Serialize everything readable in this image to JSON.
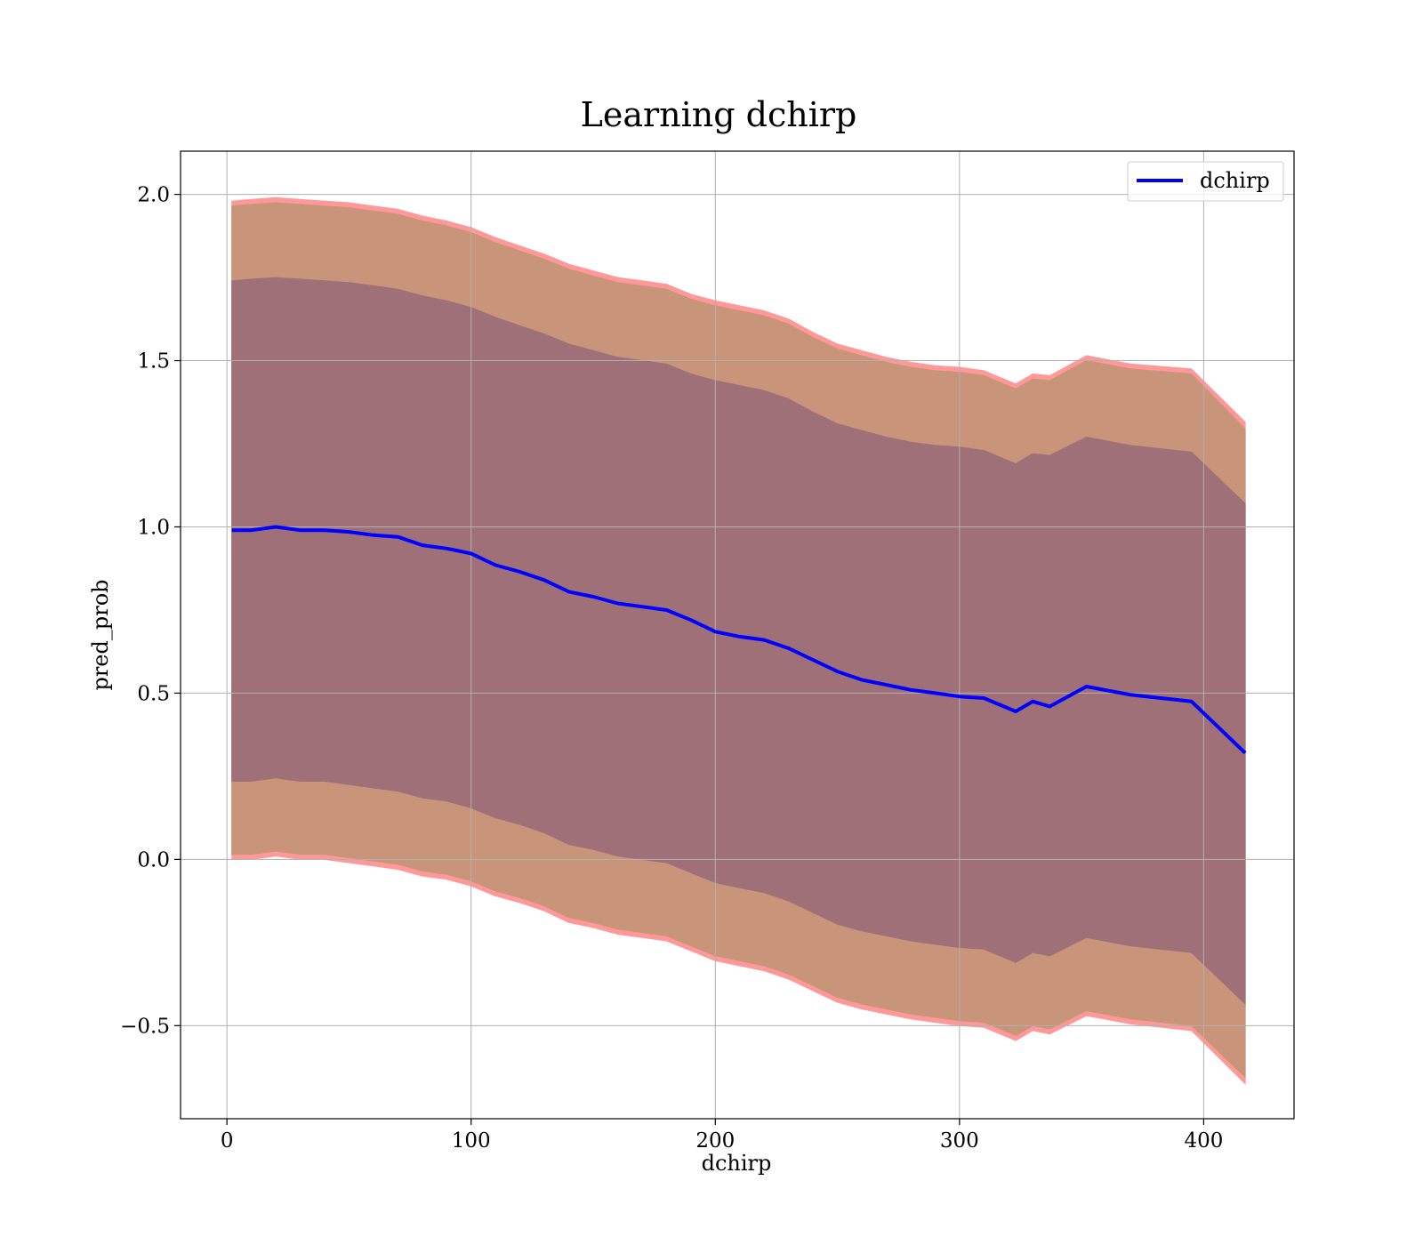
{
  "chart_data": {
    "type": "line",
    "title": "Learning dchirp",
    "xlabel": "dchirp",
    "ylabel": "pred_prob",
    "xlim": [
      -19,
      437
    ],
    "ylim": [
      -0.78,
      2.13
    ],
    "xticks": [
      0,
      100,
      200,
      300,
      400
    ],
    "yticks": [
      -0.5,
      0.0,
      0.5,
      1.0,
      1.5,
      2.0
    ],
    "xtick_labels": [
      "0",
      "100",
      "200",
      "300",
      "400"
    ],
    "ytick_labels": [
      "−0.5",
      "0.0",
      "0.5",
      "1.0",
      "1.5",
      "2.0"
    ],
    "grid": true,
    "legend": {
      "position": "top-right",
      "entries": [
        "dchirp"
      ]
    },
    "colors": {
      "line": "#0000ff",
      "band_outer": "#ff9999",
      "band_middle": "#c8957a",
      "band_inner": "#a07078"
    },
    "x": [
      2,
      10,
      20,
      30,
      40,
      50,
      60,
      70,
      80,
      90,
      100,
      110,
      120,
      130,
      140,
      150,
      160,
      170,
      180,
      190,
      200,
      210,
      220,
      230,
      240,
      250,
      260,
      270,
      280,
      290,
      300,
      310,
      323,
      330,
      337,
      352,
      370,
      395,
      417
    ],
    "series": [
      {
        "name": "dchirp",
        "values": [
          0.99,
          0.99,
          1.0,
          0.99,
          0.99,
          0.985,
          0.975,
          0.97,
          0.945,
          0.935,
          0.92,
          0.885,
          0.865,
          0.84,
          0.805,
          0.79,
          0.77,
          0.76,
          0.75,
          0.72,
          0.685,
          0.67,
          0.66,
          0.635,
          0.6,
          0.565,
          0.54,
          0.525,
          0.51,
          0.5,
          0.49,
          0.485,
          0.445,
          0.475,
          0.46,
          0.52,
          0.495,
          0.475,
          0.32
        ]
      }
    ],
    "bands": [
      {
        "level": "outer",
        "upper": [
          1.98,
          1.985,
          1.99,
          1.985,
          1.98,
          1.975,
          1.965,
          1.955,
          1.935,
          1.92,
          1.9,
          1.87,
          1.845,
          1.82,
          1.79,
          1.77,
          1.75,
          1.74,
          1.73,
          1.7,
          1.68,
          1.665,
          1.65,
          1.625,
          1.585,
          1.55,
          1.53,
          1.51,
          1.495,
          1.485,
          1.48,
          1.47,
          1.43,
          1.46,
          1.455,
          1.515,
          1.49,
          1.475,
          1.315
        ],
        "lower": [
          0.0,
          0.0,
          0.01,
          0.0,
          0.0,
          -0.01,
          -0.02,
          -0.03,
          -0.05,
          -0.06,
          -0.08,
          -0.11,
          -0.13,
          -0.155,
          -0.19,
          -0.205,
          -0.225,
          -0.235,
          -0.245,
          -0.275,
          -0.305,
          -0.32,
          -0.335,
          -0.36,
          -0.395,
          -0.43,
          -0.45,
          -0.465,
          -0.48,
          -0.49,
          -0.5,
          -0.505,
          -0.545,
          -0.515,
          -0.525,
          -0.47,
          -0.495,
          -0.515,
          -0.675
        ]
      },
      {
        "level": "middle",
        "upper": [
          1.965,
          1.97,
          1.975,
          1.97,
          1.965,
          1.96,
          1.95,
          1.94,
          1.92,
          1.905,
          1.885,
          1.855,
          1.83,
          1.805,
          1.775,
          1.755,
          1.735,
          1.725,
          1.715,
          1.685,
          1.665,
          1.65,
          1.635,
          1.61,
          1.57,
          1.535,
          1.515,
          1.495,
          1.48,
          1.47,
          1.465,
          1.455,
          1.415,
          1.445,
          1.44,
          1.5,
          1.475,
          1.46,
          1.295
        ],
        "lower": [
          0.015,
          0.015,
          0.025,
          0.015,
          0.015,
          0.005,
          -0.005,
          -0.015,
          -0.035,
          -0.045,
          -0.065,
          -0.095,
          -0.115,
          -0.14,
          -0.175,
          -0.19,
          -0.21,
          -0.22,
          -0.23,
          -0.26,
          -0.29,
          -0.305,
          -0.32,
          -0.345,
          -0.38,
          -0.415,
          -0.435,
          -0.45,
          -0.465,
          -0.475,
          -0.485,
          -0.49,
          -0.53,
          -0.5,
          -0.51,
          -0.455,
          -0.48,
          -0.5,
          -0.655
        ]
      },
      {
        "level": "inner",
        "upper": [
          1.74,
          1.745,
          1.75,
          1.745,
          1.74,
          1.735,
          1.725,
          1.715,
          1.695,
          1.68,
          1.66,
          1.63,
          1.605,
          1.58,
          1.55,
          1.53,
          1.51,
          1.5,
          1.49,
          1.46,
          1.44,
          1.425,
          1.41,
          1.385,
          1.345,
          1.31,
          1.29,
          1.27,
          1.255,
          1.245,
          1.24,
          1.23,
          1.19,
          1.22,
          1.215,
          1.27,
          1.245,
          1.225,
          1.07
        ],
        "lower": [
          0.235,
          0.235,
          0.245,
          0.235,
          0.235,
          0.225,
          0.215,
          0.205,
          0.185,
          0.175,
          0.155,
          0.125,
          0.105,
          0.08,
          0.045,
          0.03,
          0.01,
          0.0,
          -0.01,
          -0.04,
          -0.07,
          -0.085,
          -0.1,
          -0.125,
          -0.16,
          -0.195,
          -0.215,
          -0.23,
          -0.245,
          -0.255,
          -0.265,
          -0.27,
          -0.31,
          -0.28,
          -0.29,
          -0.235,
          -0.26,
          -0.28,
          -0.435
        ]
      }
    ]
  }
}
